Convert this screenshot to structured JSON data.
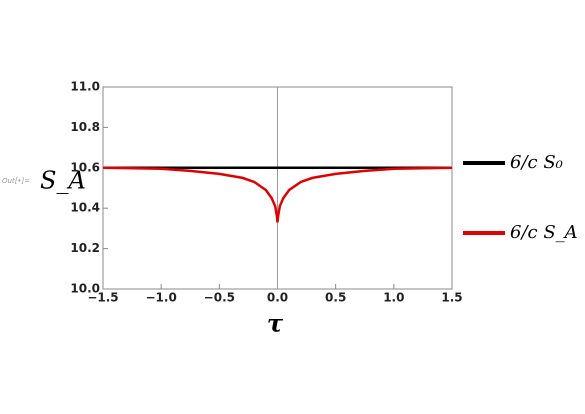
{
  "out_label": "Out[•]=",
  "chart_data": {
    "type": "line",
    "x_label": "τ",
    "y_label": "S_A",
    "x": [
      -1.5,
      -1.25,
      -1.0,
      -0.75,
      -0.5,
      -0.3,
      -0.2,
      -0.1,
      -0.05,
      -0.02,
      -0.005,
      0,
      0.005,
      0.02,
      0.05,
      0.1,
      0.2,
      0.3,
      0.5,
      0.75,
      1.0,
      1.25,
      1.5
    ],
    "series": [
      {
        "name": "6/c S₀",
        "color": "#000000",
        "values": [
          10.6,
          10.6,
          10.6,
          10.6,
          10.6,
          10.6,
          10.6,
          10.6,
          10.6,
          10.6,
          10.6,
          10.6,
          10.6,
          10.6,
          10.6,
          10.6,
          10.6,
          10.6,
          10.6,
          10.6,
          10.6,
          10.6,
          10.6
        ]
      },
      {
        "name": "6/c S_A",
        "color": "#e00000",
        "values": [
          10.6,
          10.598,
          10.595,
          10.585,
          10.57,
          10.55,
          10.53,
          10.49,
          10.45,
          10.41,
          10.36,
          10.33,
          10.36,
          10.41,
          10.45,
          10.49,
          10.53,
          10.55,
          10.57,
          10.585,
          10.595,
          10.598,
          10.6
        ]
      }
    ],
    "xlim": [
      -1.5,
      1.5
    ],
    "ylim": [
      10.0,
      11.0
    ],
    "xticks": [
      {
        "value": -1.5,
        "label": "−1.5"
      },
      {
        "value": -1.0,
        "label": "−1.0"
      },
      {
        "value": -0.5,
        "label": "−0.5"
      },
      {
        "value": 0,
        "label": "0.0"
      },
      {
        "value": 0.5,
        "label": "0.5"
      },
      {
        "value": 1.0,
        "label": "1.0"
      },
      {
        "value": 1.5,
        "label": "1.5"
      }
    ],
    "yticks": [
      {
        "value": 10.0,
        "label": "10.0"
      },
      {
        "value": 10.2,
        "label": "10.2"
      },
      {
        "value": 10.4,
        "label": "10.4"
      },
      {
        "value": 10.6,
        "label": "10.6"
      },
      {
        "value": 10.8,
        "label": "10.8"
      },
      {
        "value": 11.0,
        "label": "11.0"
      }
    ]
  }
}
